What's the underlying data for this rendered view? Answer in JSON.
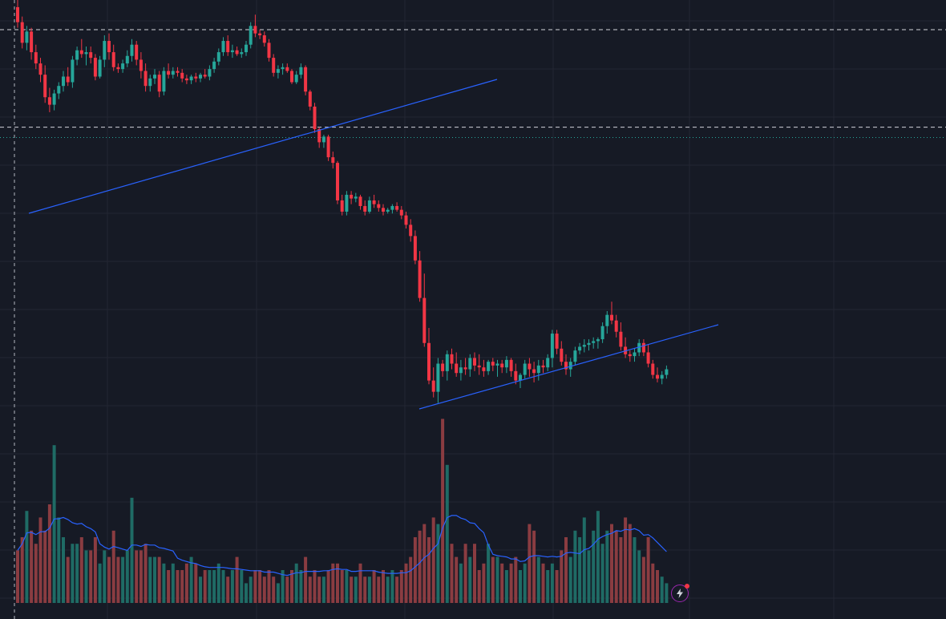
{
  "colors": {
    "background": "#161a25",
    "grid": "#232632",
    "up": "#26a69a",
    "down": "#f23645",
    "up_volume": "#1f6b65",
    "down_volume": "#8a3c41",
    "trendline": "#2962ff",
    "volume_ma": "#2962ff",
    "horizontal_line": "#d1d4dc",
    "price_line": "#26a69a",
    "badge": "#9c27b0"
  },
  "badge_icon": "lightning-icon",
  "chart_data": {
    "type": "candlestick",
    "y_scale": "price",
    "grid": true,
    "x_axis_labels": false,
    "y_axis_labels": false,
    "horizontal_levels": [
      100,
      48
    ],
    "current_price_level": 42.5,
    "ohlc": [
      [
        112,
        116,
        101,
        104
      ],
      [
        104,
        107,
        90,
        93
      ],
      [
        93,
        102,
        89,
        99
      ],
      [
        99,
        101,
        84,
        88
      ],
      [
        88,
        92,
        79,
        82
      ],
      [
        82,
        85,
        72,
        76
      ],
      [
        76,
        81,
        61,
        64
      ],
      [
        64,
        69,
        56,
        60
      ],
      [
        60,
        68,
        57,
        66
      ],
      [
        66,
        72,
        63,
        70
      ],
      [
        70,
        78,
        67,
        75
      ],
      [
        75,
        80,
        70,
        72
      ],
      [
        72,
        86,
        69,
        84
      ],
      [
        84,
        91,
        81,
        89
      ],
      [
        89,
        95,
        85,
        87
      ],
      [
        87,
        91,
        81,
        88
      ],
      [
        88,
        91,
        82,
        85
      ],
      [
        85,
        87,
        73,
        75
      ],
      [
        75,
        86,
        74,
        84
      ],
      [
        84,
        97,
        80,
        94
      ],
      [
        94,
        98,
        84,
        88
      ],
      [
        88,
        92,
        78,
        80
      ],
      [
        80,
        82,
        77,
        79
      ],
      [
        79,
        84,
        77,
        82
      ],
      [
        82,
        89,
        80,
        86
      ],
      [
        86,
        95,
        83,
        92
      ],
      [
        92,
        94,
        81,
        84
      ],
      [
        84,
        88,
        74,
        78
      ],
      [
        78,
        82,
        67,
        70
      ],
      [
        70,
        76,
        67,
        74
      ],
      [
        74,
        79,
        71,
        76
      ],
      [
        76,
        78,
        64,
        67
      ],
      [
        67,
        80,
        65,
        78
      ],
      [
        78,
        82,
        74,
        76
      ],
      [
        76,
        80,
        74,
        78
      ],
      [
        78,
        80,
        75,
        77
      ],
      [
        77,
        79,
        72,
        74
      ],
      [
        74,
        76,
        71,
        73
      ],
      [
        73,
        76,
        71,
        75
      ],
      [
        75,
        77,
        72,
        74
      ],
      [
        74,
        77,
        72,
        76
      ],
      [
        76,
        79,
        74,
        75
      ],
      [
        75,
        81,
        73,
        79
      ],
      [
        79,
        85,
        77,
        83
      ],
      [
        83,
        90,
        81,
        88
      ],
      [
        88,
        96,
        86,
        94
      ],
      [
        94,
        97,
        86,
        88
      ],
      [
        88,
        92,
        85,
        89
      ],
      [
        89,
        91,
        86,
        87
      ],
      [
        87,
        90,
        85,
        88
      ],
      [
        88,
        94,
        86,
        92
      ],
      [
        92,
        104,
        90,
        102
      ],
      [
        102,
        108,
        96,
        98
      ],
      [
        98,
        100,
        95,
        97
      ],
      [
        97,
        99,
        91,
        93
      ],
      [
        93,
        95,
        83,
        85
      ],
      [
        85,
        87,
        75,
        77
      ],
      [
        77,
        81,
        74,
        79
      ],
      [
        79,
        82,
        76,
        80
      ],
      [
        80,
        82,
        77,
        78
      ],
      [
        78,
        79,
        71,
        72
      ],
      [
        72,
        78,
        71,
        76
      ],
      [
        76,
        82,
        74,
        80
      ],
      [
        80,
        81,
        65,
        67
      ],
      [
        67,
        68,
        57,
        59
      ],
      [
        59,
        61,
        45,
        47
      ],
      [
        47,
        48,
        37,
        40
      ],
      [
        40,
        44,
        37,
        43
      ],
      [
        43,
        44,
        30,
        32
      ],
      [
        32,
        35,
        26,
        29
      ],
      [
        29,
        30,
        7,
        9
      ],
      [
        9,
        12,
        1,
        3
      ],
      [
        3,
        14,
        1,
        12
      ],
      [
        12,
        14,
        7,
        10
      ],
      [
        10,
        13,
        8,
        11
      ],
      [
        11,
        12,
        4,
        6
      ],
      [
        6,
        9,
        1,
        3
      ],
      [
        3,
        11,
        2,
        9
      ],
      [
        9,
        12,
        5,
        7
      ],
      [
        7,
        9,
        3,
        5
      ],
      [
        5,
        7,
        1,
        3
      ],
      [
        3,
        5,
        2,
        4
      ],
      [
        4,
        7,
        2,
        6
      ],
      [
        6,
        8,
        3,
        4
      ],
      [
        4,
        6,
        -1,
        1
      ],
      [
        1,
        3,
        -6,
        -4
      ],
      [
        -4,
        -1,
        -13,
        -10
      ],
      [
        -10,
        -7,
        -25,
        -23
      ],
      [
        -23,
        -18,
        -45,
        -43
      ],
      [
        -43,
        -30,
        -69,
        -67
      ],
      [
        -67,
        -59,
        -89,
        -87
      ],
      [
        -87,
        -80,
        -96,
        -93
      ],
      [
        -93,
        -75,
        -99,
        -78
      ],
      [
        -78,
        -76,
        -85,
        -82
      ],
      [
        -82,
        -71,
        -87,
        -73
      ],
      [
        -73,
        -70,
        -81,
        -78
      ],
      [
        -78,
        -72,
        -85,
        -83
      ],
      [
        -83,
        -76,
        -87,
        -80
      ],
      [
        -80,
        -75,
        -84,
        -81
      ],
      [
        -81,
        -73,
        -85,
        -75
      ],
      [
        -75,
        -72,
        -82,
        -79
      ],
      [
        -79,
        -73,
        -84,
        -80
      ],
      [
        -80,
        -76,
        -85,
        -82
      ],
      [
        -82,
        -76,
        -84,
        -77
      ],
      [
        -77,
        -75,
        -82,
        -79
      ],
      [
        -79,
        -76,
        -85,
        -78
      ],
      [
        -78,
        -76,
        -83,
        -80
      ],
      [
        -80,
        -74,
        -83,
        -76
      ],
      [
        -76,
        -75,
        -85,
        -82
      ],
      [
        -82,
        -78,
        -89,
        -87
      ],
      [
        -87,
        -83,
        -91,
        -84
      ],
      [
        -84,
        -76,
        -86,
        -78
      ],
      [
        -78,
        -75,
        -85,
        -81
      ],
      [
        -81,
        -77,
        -88,
        -83
      ],
      [
        -83,
        -76,
        -87,
        -79
      ],
      [
        -79,
        -76,
        -83,
        -80
      ],
      [
        -80,
        -73,
        -82,
        -75
      ],
      [
        -75,
        -60,
        -80,
        -62
      ],
      [
        -62,
        -60,
        -73,
        -70
      ],
      [
        -70,
        -66,
        -79,
        -77
      ],
      [
        -77,
        -73,
        -84,
        -81
      ],
      [
        -81,
        -75,
        -85,
        -77
      ],
      [
        -77,
        -69,
        -79,
        -71
      ],
      [
        -71,
        -67,
        -73,
        -69
      ],
      [
        -69,
        -65,
        -72,
        -68
      ],
      [
        -68,
        -65,
        -71,
        -67
      ],
      [
        -67,
        -64,
        -70,
        -66
      ],
      [
        -66,
        -64,
        -70,
        -65
      ],
      [
        -65,
        -56,
        -67,
        -58
      ],
      [
        -58,
        -50,
        -62,
        -52
      ],
      [
        -52,
        -45,
        -57,
        -55
      ],
      [
        -55,
        -52,
        -64,
        -61
      ],
      [
        -61,
        -56,
        -71,
        -69
      ],
      [
        -69,
        -64,
        -75,
        -73
      ],
      [
        -73,
        -71,
        -77,
        -74
      ],
      [
        -74,
        -70,
        -77,
        -72
      ],
      [
        -72,
        -65,
        -74,
        -67
      ],
      [
        -67,
        -65,
        -74,
        -72
      ],
      [
        -72,
        -68,
        -80,
        -78
      ],
      [
        -78,
        -76,
        -86,
        -84
      ],
      [
        -84,
        -80,
        -88,
        -86
      ],
      [
        -86,
        -82,
        -89,
        -84
      ],
      [
        -84,
        -79,
        -86,
        -81
      ]
    ],
    "volume": [
      8,
      10,
      14,
      11,
      9,
      13,
      11,
      15,
      24,
      13,
      10,
      7,
      9,
      9,
      10,
      8,
      8,
      10,
      6,
      8,
      7,
      11,
      7,
      7,
      8,
      16,
      8,
      8,
      9,
      7,
      7,
      7,
      6,
      5,
      6,
      5,
      5,
      6,
      7,
      6,
      4,
      5,
      5,
      5,
      6,
      5,
      4,
      5,
      7,
      5,
      3,
      4,
      5,
      5,
      4,
      5,
      4,
      3,
      5,
      4,
      5,
      6,
      5,
      7,
      4,
      5,
      4,
      4,
      5,
      6,
      6,
      5,
      5,
      4,
      4,
      6,
      4,
      4,
      5,
      4,
      5,
      4,
      5,
      4,
      5,
      6,
      7,
      10,
      11,
      12,
      10,
      13,
      12,
      28,
      21,
      9,
      7,
      6,
      9,
      7,
      9,
      5,
      6,
      9,
      7,
      7,
      6,
      5,
      6,
      7,
      5,
      6,
      12,
      11,
      7,
      6,
      5,
      6,
      5,
      8,
      10,
      7,
      11,
      10,
      13,
      8,
      11,
      14,
      9,
      11,
      12,
      11,
      10,
      13,
      12,
      10,
      8,
      7,
      10,
      6,
      5,
      4,
      3
    ]
  }
}
